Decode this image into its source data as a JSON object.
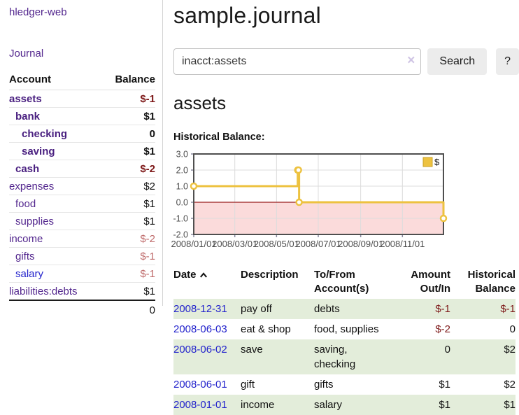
{
  "app": {
    "brand": "hledger-web"
  },
  "sidebar": {
    "journal_label": "Journal",
    "accounts": {
      "header_account": "Account",
      "header_balance": "Balance",
      "rows": [
        {
          "name": "assets",
          "indent": 1,
          "bold": true,
          "balance": "$-1"
        },
        {
          "name": "bank",
          "indent": 2,
          "bold": true,
          "balance": "$1"
        },
        {
          "name": "checking",
          "indent": 3,
          "bold": true,
          "balance": "0"
        },
        {
          "name": "saving",
          "indent": 3,
          "bold": true,
          "balance": "$1"
        },
        {
          "name": "cash",
          "indent": 2,
          "bold": true,
          "balance": "$-2"
        },
        {
          "name": "expenses",
          "indent": 1,
          "bold": false,
          "balance": "$2"
        },
        {
          "name": "food",
          "indent": 2,
          "bold": false,
          "balance": "$1"
        },
        {
          "name": "supplies",
          "indent": 2,
          "bold": false,
          "balance": "$1"
        },
        {
          "name": "income",
          "indent": 1,
          "bold": false,
          "balance": "$-2"
        },
        {
          "name": "gifts",
          "indent": 2,
          "bold": false,
          "balance": "$-1"
        },
        {
          "name": "salary",
          "indent": 2,
          "bold": false,
          "balance": "$-1",
          "blue": true
        },
        {
          "name": "liabilities:debts",
          "indent": 1,
          "bold": false,
          "balance": "$1"
        }
      ],
      "total": "0"
    }
  },
  "header": {
    "title": "sample.journal"
  },
  "search": {
    "value": "inacct:assets",
    "clear_icon": "×",
    "button_label": "Search",
    "help_label": "?"
  },
  "register": {
    "heading": "assets",
    "chart_label": "Historical Balance:",
    "table": {
      "headers": [
        "Date",
        "Description",
        "To/From Account(s)",
        "Amount Out/In",
        "Historical Balance"
      ],
      "rows": [
        {
          "date": "2008-12-31",
          "description": "pay off",
          "accounts": "debts",
          "amount": "$-1",
          "balance": "$-1"
        },
        {
          "date": "2008-06-03",
          "description": "eat & shop",
          "accounts": "food, supplies",
          "amount": "$-2",
          "balance": "0"
        },
        {
          "date": "2008-06-02",
          "description": "save",
          "accounts": "saving, checking",
          "amount": "0",
          "balance": "$2"
        },
        {
          "date": "2008-06-01",
          "description": "gift",
          "accounts": "gifts",
          "amount": "$1",
          "balance": "$2"
        },
        {
          "date": "2008-01-01",
          "description": "income",
          "accounts": "salary",
          "amount": "$1",
          "balance": "$1"
        }
      ]
    }
  },
  "chart_data": {
    "type": "line",
    "steps": true,
    "title": "Historical Balance:",
    "series": [
      {
        "name": "$",
        "color": "#edc240",
        "x": [
          "2008-01-01",
          "2008-06-01",
          "2008-06-02",
          "2008-06-03",
          "2008-12-31"
        ],
        "y": [
          1,
          2,
          2,
          0,
          -1
        ]
      }
    ],
    "xlim": [
      "2008-01-01",
      "2008-12-31"
    ],
    "ylim": [
      -2,
      3
    ],
    "y_ticks": [
      {
        "label": "3.0",
        "value": 3
      },
      {
        "label": "2.0",
        "value": 2
      },
      {
        "label": "1.0",
        "value": 1
      },
      {
        "label": "0.0",
        "value": 0
      },
      {
        "label": "-1.0",
        "value": -1
      },
      {
        "label": "-2.0",
        "value": -2
      }
    ],
    "x_ticks": [
      {
        "label": "2008/01/01",
        "date": "2008-01-01"
      },
      {
        "label": "2008/03/01",
        "date": "2008-03-01"
      },
      {
        "label": "2008/05/01",
        "date": "2008-05-01"
      },
      {
        "label": "2008/07/01",
        "date": "2008-07-01"
      },
      {
        "label": "2008/09/01",
        "date": "2008-09-01"
      },
      {
        "label": "2008/11/01",
        "date": "2008-11-01"
      }
    ],
    "grid_x": [
      "2008-03-01",
      "2008-05-01",
      "2008-07-01",
      "2008-09-01",
      "2008-11-01"
    ],
    "legend": {
      "label": "$",
      "position": "top-right"
    },
    "colors": {
      "negative_region": "#fbdbdb",
      "zero_line": "#9a1f1f",
      "grid": "#dcdcdc",
      "border": "#4f4f4f",
      "axis_text": "#4d4d4d"
    }
  }
}
